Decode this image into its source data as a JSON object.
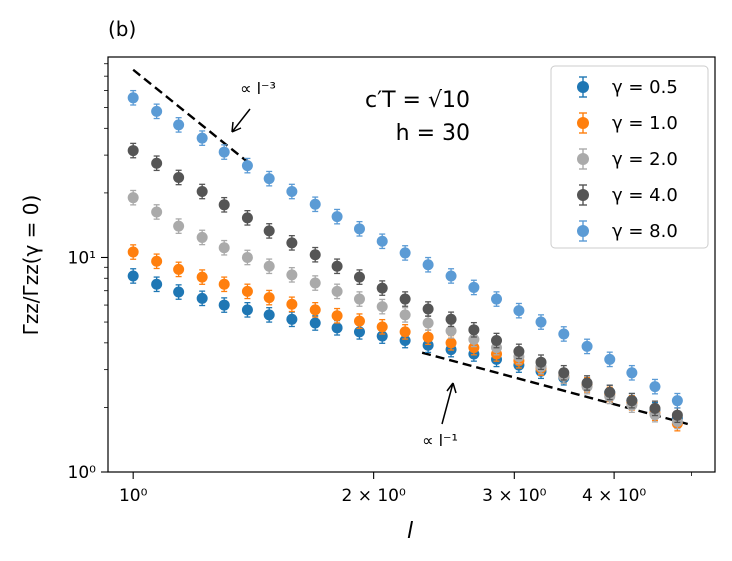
{
  "chart_data": {
    "type": "scatter",
    "panel_label": "(b)",
    "xlabel": "l",
    "ylabel": "Γzz/Γzz(γ = 0)",
    "xscale": "log",
    "yscale": "log",
    "xlim": [
      0.93,
      5.35
    ],
    "ylim": [
      1,
      86
    ],
    "x_ticks": [
      {
        "value": 1,
        "label": "10⁰"
      },
      {
        "value": 2,
        "label": "2 × 10⁰"
      },
      {
        "value": 3,
        "label": "3 × 10⁰"
      },
      {
        "value": 4,
        "label": "4 × 10⁰"
      }
    ],
    "y_ticks": [
      {
        "value": 1,
        "label": "10⁰"
      },
      {
        "value": 10,
        "label": "10¹"
      }
    ],
    "legend_position": "upper right",
    "params": {
      "line1": "c′T = √10",
      "line2": "h = 30"
    },
    "annotations": [
      {
        "text": "∝ l⁻³"
      },
      {
        "text": "∝ l⁻¹"
      }
    ],
    "x": [
      1.0,
      1.07,
      1.14,
      1.22,
      1.3,
      1.39,
      1.48,
      1.58,
      1.69,
      1.8,
      1.92,
      2.05,
      2.19,
      2.34,
      2.5,
      2.67,
      2.85,
      3.04,
      3.24,
      3.46,
      3.7,
      3.95,
      4.21,
      4.5,
      4.8
    ],
    "series": [
      {
        "name": "γ = 0.5",
        "color": "#1f77b4",
        "values": [
          8.2,
          7.5,
          6.9,
          6.45,
          6.0,
          5.7,
          5.4,
          5.15,
          4.95,
          4.7,
          4.5,
          4.3,
          4.1,
          3.9,
          3.72,
          3.55,
          3.35,
          3.15,
          2.95,
          2.75,
          2.55,
          2.35,
          2.15,
          1.95,
          1.78
        ]
      },
      {
        "name": "γ = 1.0",
        "color": "#ff7f0e",
        "values": [
          10.6,
          9.6,
          8.8,
          8.1,
          7.5,
          6.95,
          6.5,
          6.05,
          5.7,
          5.35,
          5.05,
          4.75,
          4.5,
          4.25,
          4.0,
          3.8,
          3.55,
          3.3,
          3.05,
          2.8,
          2.55,
          2.3,
          2.1,
          1.88,
          1.68
        ]
      },
      {
        "name": "γ = 2.0",
        "color": "#aaaaaa",
        "values": [
          19.0,
          16.3,
          14.0,
          12.4,
          11.1,
          10.0,
          9.1,
          8.3,
          7.6,
          6.95,
          6.4,
          5.9,
          5.4,
          4.95,
          4.55,
          4.15,
          3.8,
          3.45,
          3.1,
          2.8,
          2.5,
          2.25,
          2.05,
          1.85,
          1.72
        ]
      },
      {
        "name": "γ = 4.0",
        "color": "#555555",
        "values": [
          31.5,
          27.5,
          23.6,
          20.3,
          17.6,
          15.3,
          13.3,
          11.7,
          10.3,
          9.1,
          8.1,
          7.2,
          6.4,
          5.75,
          5.15,
          4.6,
          4.1,
          3.65,
          3.25,
          2.9,
          2.6,
          2.35,
          2.15,
          1.98,
          1.84
        ]
      },
      {
        "name": "γ = 8.0",
        "color": "#5b9bd5",
        "values": [
          55.5,
          48.0,
          41.5,
          36.0,
          31.0,
          26.8,
          23.3,
          20.3,
          17.7,
          15.5,
          13.6,
          11.9,
          10.5,
          9.25,
          8.2,
          7.25,
          6.4,
          5.65,
          5.0,
          4.4,
          3.85,
          3.35,
          2.9,
          2.5,
          2.15
        ]
      }
    ]
  }
}
